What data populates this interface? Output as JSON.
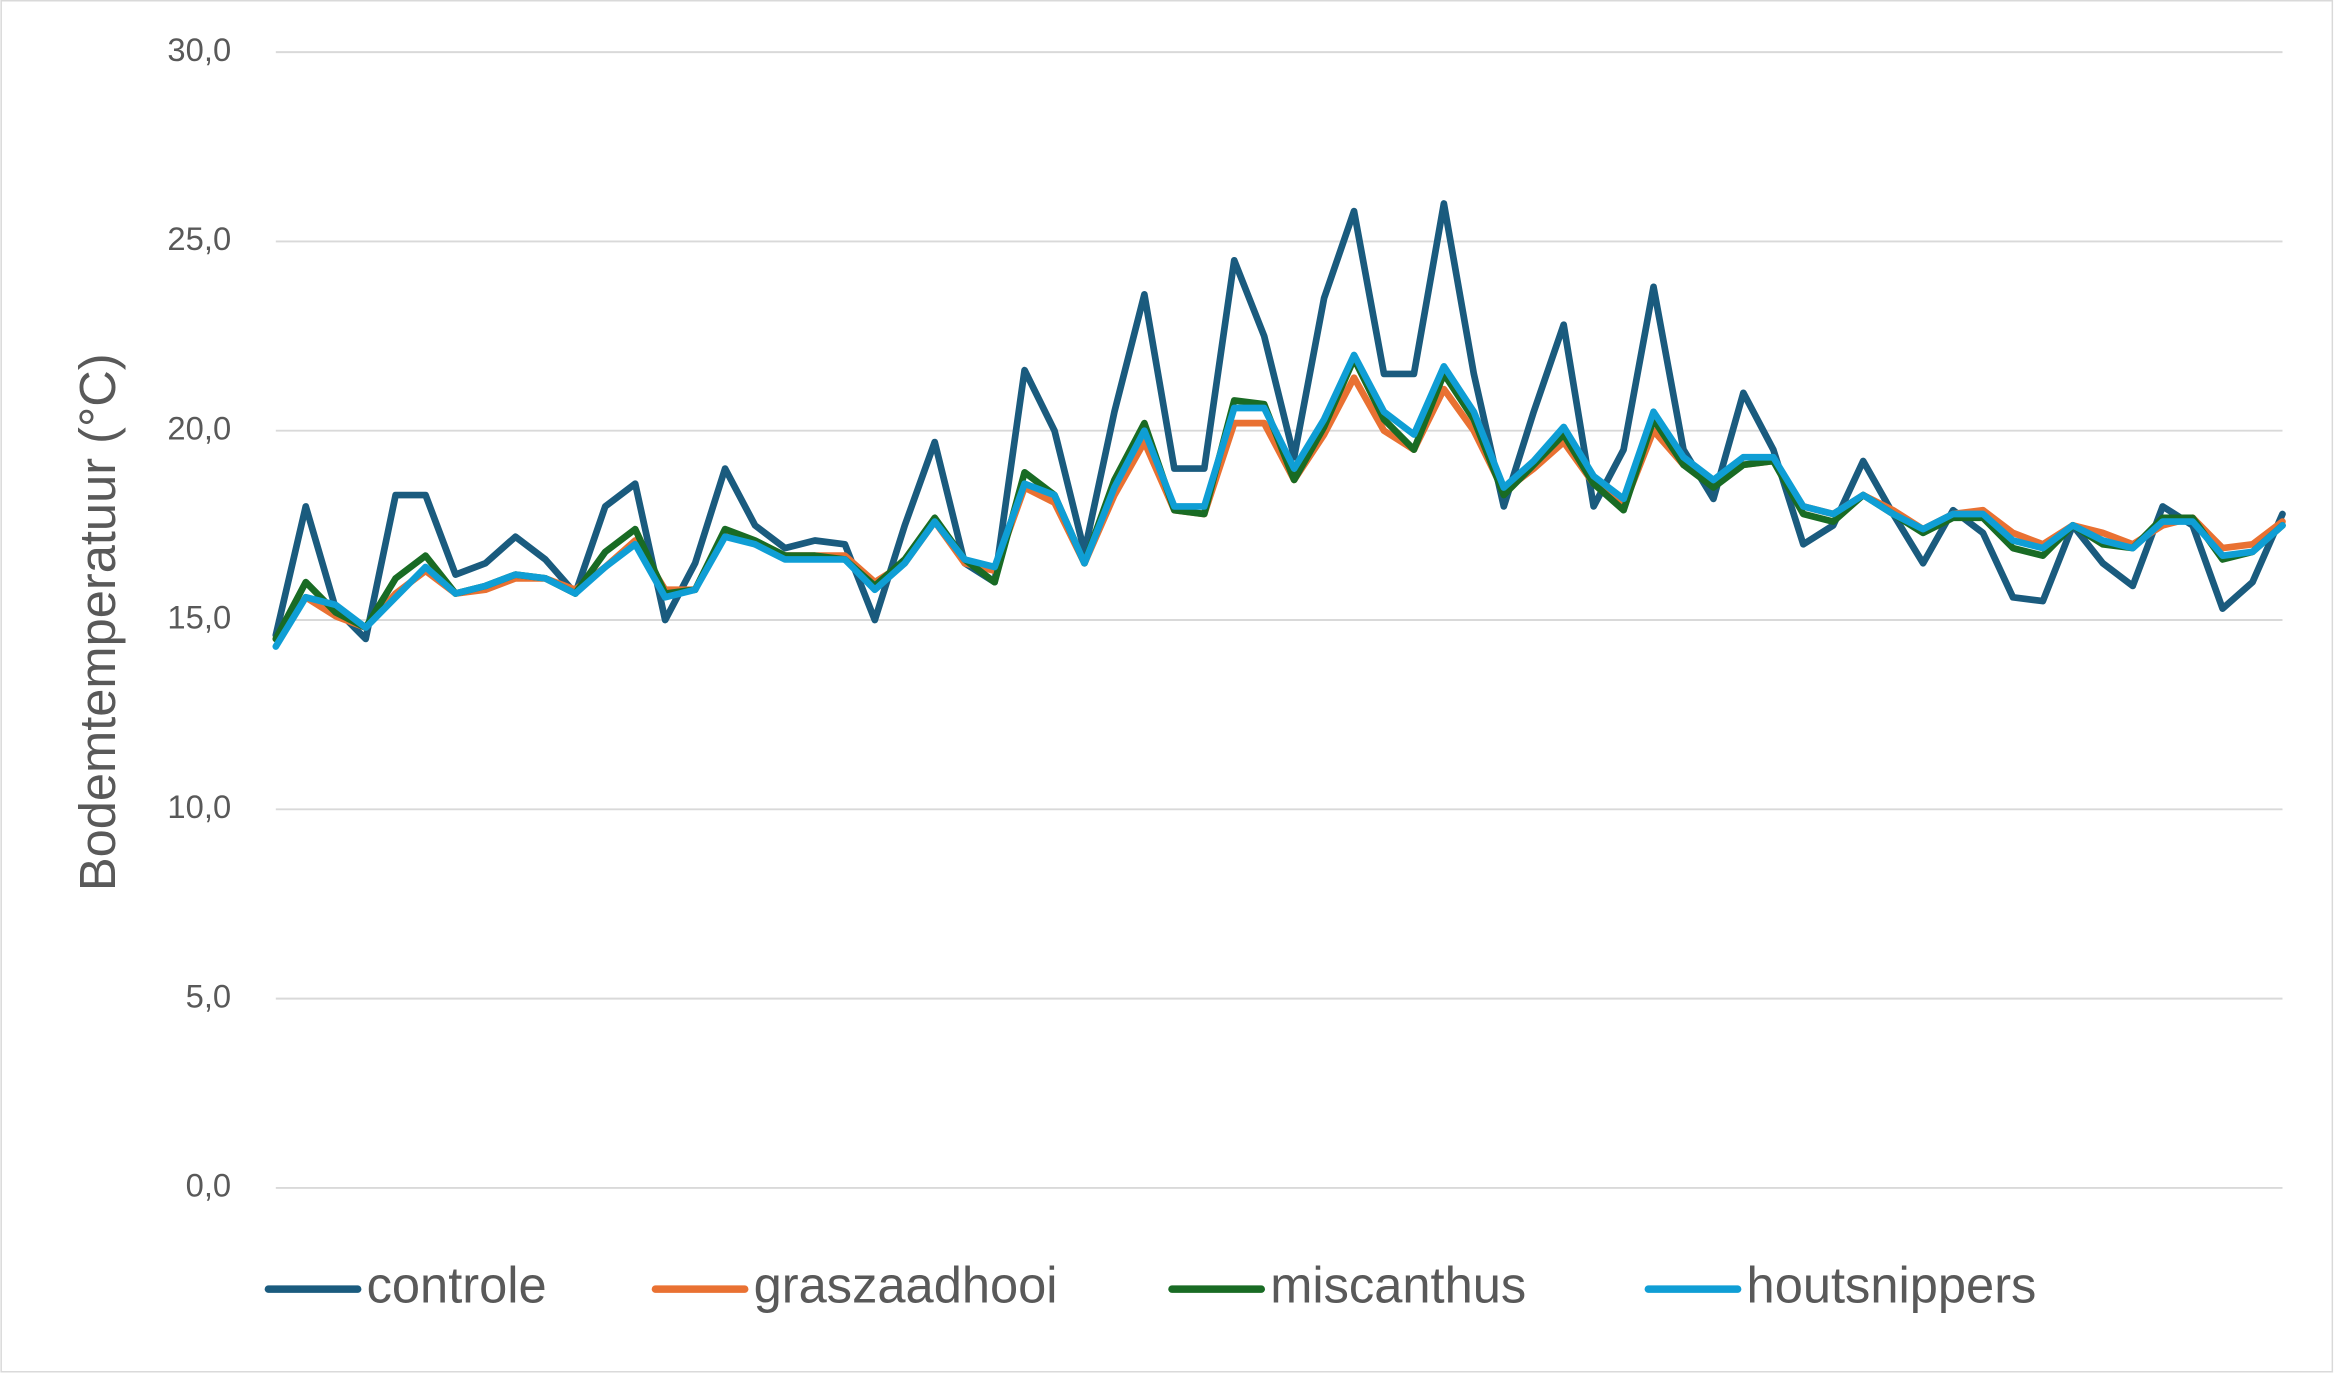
{
  "chart_data": {
    "type": "line",
    "ylabel": "Bodemtemperatuur (°C)",
    "ylim": [
      0,
      30
    ],
    "yticks": [
      {
        "value": 0,
        "label": "0,0"
      },
      {
        "value": 5,
        "label": "5,0"
      },
      {
        "value": 10,
        "label": "10,0"
      },
      {
        "value": 15,
        "label": "15,0"
      },
      {
        "value": 20,
        "label": "20,0"
      },
      {
        "value": 25,
        "label": "25,0"
      },
      {
        "value": 30,
        "label": "30,0"
      }
    ],
    "grid": true,
    "legend": "bottom",
    "series": [
      {
        "name": "controle",
        "color": "#1a5b7e",
        "values": [
          14.6,
          18.0,
          15.3,
          14.5,
          18.3,
          18.3,
          16.2,
          16.5,
          17.2,
          16.6,
          15.7,
          18.0,
          18.6,
          15.0,
          16.5,
          19.0,
          17.5,
          16.9,
          17.1,
          17.0,
          15.0,
          17.5,
          19.7,
          16.5,
          16.0,
          21.6,
          20.0,
          16.8,
          20.5,
          23.6,
          19.0,
          19.0,
          24.5,
          22.5,
          19.3,
          23.5,
          25.8,
          21.5,
          21.5,
          26.0,
          21.5,
          18.0,
          20.5,
          22.8,
          18.0,
          19.5,
          23.8,
          19.5,
          18.2,
          21.0,
          19.5,
          17.0,
          17.5,
          19.2,
          17.8,
          16.5,
          17.9,
          17.3,
          15.6,
          15.5,
          17.5,
          16.5,
          15.9,
          18.0,
          17.5,
          15.3,
          16.0,
          17.8
        ]
      },
      {
        "name": "graszaadhooi",
        "color": "#e97132",
        "values": [
          14.5,
          15.6,
          15.1,
          14.8,
          15.7,
          16.3,
          15.7,
          15.8,
          16.1,
          16.1,
          15.8,
          16.4,
          17.1,
          15.8,
          15.8,
          17.3,
          17.0,
          16.7,
          16.7,
          16.7,
          16.0,
          16.5,
          17.6,
          16.5,
          16.3,
          18.5,
          18.1,
          16.5,
          18.3,
          19.7,
          17.9,
          17.8,
          20.2,
          20.2,
          18.7,
          19.9,
          21.4,
          20.0,
          19.5,
          21.1,
          20.0,
          18.4,
          19.0,
          19.7,
          18.6,
          18.0,
          20.0,
          19.1,
          18.7,
          19.1,
          19.2,
          18.0,
          17.8,
          18.3,
          17.9,
          17.4,
          17.8,
          17.9,
          17.3,
          17.0,
          17.5,
          17.3,
          17.0,
          17.5,
          17.7,
          16.9,
          17.0,
          17.6
        ]
      },
      {
        "name": "miscanthus",
        "color": "#196b24",
        "values": [
          14.5,
          16.0,
          15.2,
          14.8,
          16.1,
          16.7,
          15.7,
          15.9,
          16.2,
          16.1,
          15.7,
          16.8,
          17.4,
          15.7,
          15.8,
          17.4,
          17.1,
          16.7,
          16.7,
          16.6,
          15.9,
          16.6,
          17.7,
          16.6,
          16.0,
          18.9,
          18.3,
          16.5,
          18.7,
          20.2,
          17.9,
          17.8,
          20.8,
          20.7,
          18.7,
          20.1,
          21.9,
          20.3,
          19.5,
          21.5,
          20.3,
          18.3,
          19.1,
          19.9,
          18.6,
          17.9,
          20.3,
          19.1,
          18.5,
          19.1,
          19.2,
          17.8,
          17.6,
          18.3,
          17.8,
          17.3,
          17.7,
          17.7,
          16.9,
          16.7,
          17.5,
          17.0,
          16.9,
          17.7,
          17.7,
          16.6,
          16.8,
          17.5
        ]
      },
      {
        "name": "houtsnippers",
        "color": "#0f9ed5",
        "values": [
          14.3,
          15.6,
          15.4,
          14.8,
          15.6,
          16.4,
          15.7,
          15.9,
          16.2,
          16.1,
          15.7,
          16.4,
          17.0,
          15.6,
          15.8,
          17.2,
          17.0,
          16.6,
          16.6,
          16.6,
          15.8,
          16.5,
          17.6,
          16.6,
          16.4,
          18.6,
          18.3,
          16.5,
          18.5,
          20.0,
          18.0,
          18.0,
          20.6,
          20.6,
          19.0,
          20.3,
          22.0,
          20.5,
          19.9,
          21.7,
          20.5,
          18.5,
          19.2,
          20.1,
          18.8,
          18.2,
          20.5,
          19.3,
          18.7,
          19.3,
          19.3,
          18.0,
          17.8,
          18.3,
          17.8,
          17.4,
          17.8,
          17.8,
          17.1,
          16.9,
          17.5,
          17.1,
          16.9,
          17.6,
          17.6,
          16.7,
          16.8,
          17.5
        ]
      }
    ]
  }
}
